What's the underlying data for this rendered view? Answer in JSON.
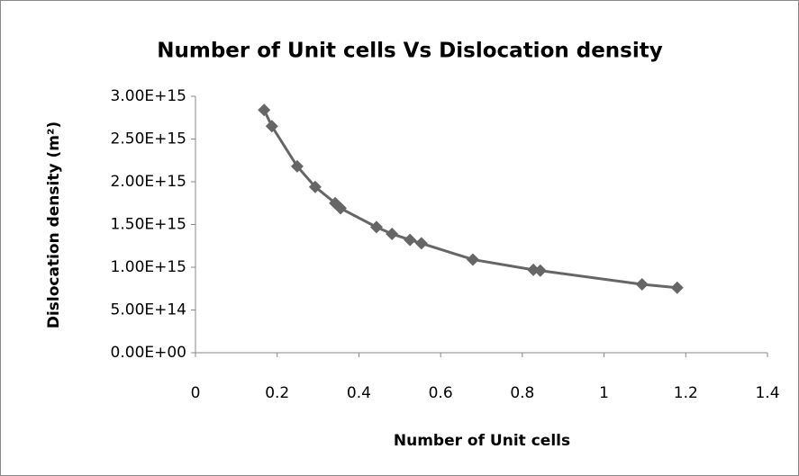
{
  "chart_data": {
    "type": "scatter-line",
    "title": "Number of Unit cells Vs Dislocation  density",
    "x_label": "Number of Unit cells",
    "y_label": "Dislocation density (m²)",
    "series": [
      {
        "color": "#666666",
        "x": [
          0.168,
          0.187,
          0.249,
          0.293,
          0.342,
          0.355,
          0.443,
          0.481,
          0.525,
          0.553,
          0.679,
          0.827,
          0.844,
          1.093,
          1.179
        ],
        "values": [
          2840000000000000.0,
          2650000000000000.0,
          2180000000000000.0,
          1940000000000000.0,
          1750000000000000.0,
          1690000000000000.0,
          1470000000000000.0,
          1390000000000000.0,
          1320000000000000.0,
          1280000000000000.0,
          1090000000000000.0,
          970000000000000.0,
          960000000000000.0,
          800000000000000.0,
          760000000000000.0
        ]
      }
    ],
    "xlim": [
      0,
      1.4
    ],
    "xticks": [
      0,
      0.2,
      0.4,
      0.6,
      0.8,
      1,
      1.2,
      1.4
    ],
    "ylim": [
      0,
      3000000000000000.0
    ],
    "yticks": [
      {
        "value": 0,
        "label": "0.00E+00"
      },
      {
        "value": 500000000000000.0,
        "label": "5.00E+14"
      },
      {
        "value": 1000000000000000.0,
        "label": "1.00E+15"
      },
      {
        "value": 1500000000000000.0,
        "label": "1.50E+15"
      },
      {
        "value": 2000000000000000.0,
        "label": "2.00E+15"
      },
      {
        "value": 2500000000000000.0,
        "label": "2.50E+15"
      },
      {
        "value": 3000000000000000.0,
        "label": "3.00E+15"
      }
    ],
    "grid": false
  }
}
